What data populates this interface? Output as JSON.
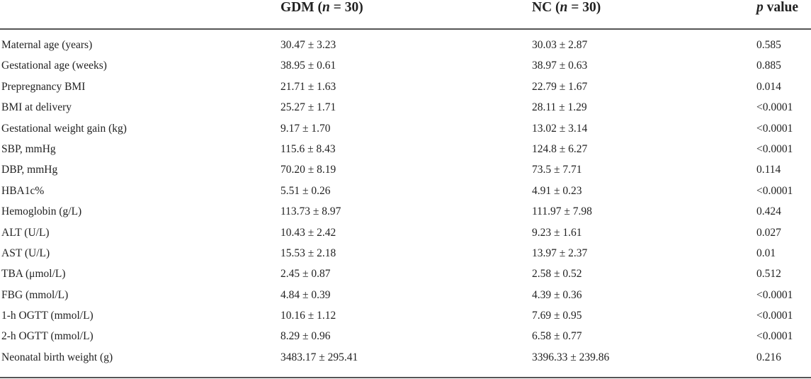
{
  "header": {
    "gdm_prefix": "GDM (",
    "gdm_n": "n",
    "gdm_suffix": " = 30)",
    "nc_prefix": "NC (",
    "nc_n": "n",
    "nc_suffix": " = 30)",
    "p_italic": "p",
    "p_suffix": " value"
  },
  "rows": [
    {
      "label": "Maternal age (years)",
      "gdm": "30.47 ± 3.23",
      "nc": "30.03 ± 2.87",
      "p": "0.585"
    },
    {
      "label": "Gestational age (weeks)",
      "gdm": "38.95 ± 0.61",
      "nc": "38.97 ± 0.63",
      "p": "0.885"
    },
    {
      "label": "Prepregnancy BMI",
      "gdm": "21.71 ± 1.63",
      "nc": "22.79 ± 1.67",
      "p": "0.014"
    },
    {
      "label": "BMI at delivery",
      "gdm": "25.27 ± 1.71",
      "nc": "28.11 ± 1.29",
      "p": "<0.0001"
    },
    {
      "label": "Gestational weight gain (kg)",
      "gdm": "9.17 ± 1.70",
      "nc": "13.02 ± 3.14",
      "p": "<0.0001"
    },
    {
      "label": "SBP, mmHg",
      "gdm": "115.6 ± 8.43",
      "nc": "124.8 ± 6.27",
      "p": "<0.0001"
    },
    {
      "label": "DBP, mmHg",
      "gdm": "70.20 ± 8.19",
      "nc": "73.5 ± 7.71",
      "p": "0.114"
    },
    {
      "label": "HBA1c%",
      "gdm": "5.51 ± 0.26",
      "nc": "4.91 ± 0.23",
      "p": "<0.0001"
    },
    {
      "label": "Hemoglobin (g/L)",
      "gdm": "113.73 ± 8.97",
      "nc": "111.97 ± 7.98",
      "p": "0.424"
    },
    {
      "label": "ALT (U/L)",
      "gdm": "10.43 ± 2.42",
      "nc": "9.23 ± 1.61",
      "p": "0.027"
    },
    {
      "label": "AST (U/L)",
      "gdm": "15.53 ± 2.18",
      "nc": "13.97 ± 2.37",
      "p": "0.01"
    },
    {
      "label": "TBA (μmol/L)",
      "gdm": "2.45 ± 0.87",
      "nc": "2.58 ± 0.52",
      "p": "0.512"
    },
    {
      "label": "FBG (mmol/L)",
      "gdm": "4.84 ± 0.39",
      "nc": "4.39 ± 0.36",
      "p": "<0.0001"
    },
    {
      "label": "1-h OGTT (mmol/L)",
      "gdm": "10.16 ± 1.12",
      "nc": "7.69 ± 0.95",
      "p": "<0.0001"
    },
    {
      "label": "2-h OGTT (mmol/L)",
      "gdm": "8.29 ± 0.96",
      "nc": "6.58 ± 0.77",
      "p": "<0.0001"
    },
    {
      "label": "Neonatal birth weight (g)",
      "gdm": "3483.17 ± 295.41",
      "nc": "3396.33 ± 239.86",
      "p": "0.216"
    }
  ]
}
